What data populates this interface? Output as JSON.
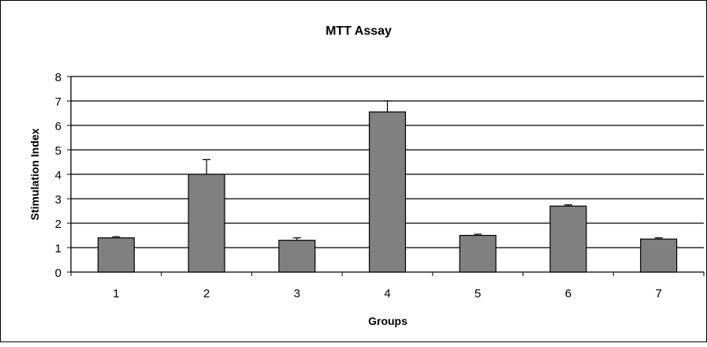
{
  "chart_data": {
    "type": "bar",
    "title": "MTT Assay",
    "xlabel": "Groups",
    "ylabel": "Stimulation Index",
    "categories": [
      "1",
      "2",
      "3",
      "4",
      "5",
      "6",
      "7"
    ],
    "values": [
      1.4,
      4.0,
      1.3,
      6.55,
      1.5,
      2.7,
      1.35
    ],
    "error": [
      0.05,
      0.6,
      0.1,
      0.45,
      0.05,
      0.05,
      0.05
    ],
    "ylim": [
      0,
      8
    ],
    "yticks": [
      "0",
      "1",
      "2",
      "3",
      "4",
      "5",
      "6",
      "7",
      "8"
    ],
    "grid": true,
    "legend": "none",
    "bar_color": "#808080",
    "grid_color": "#000000"
  }
}
